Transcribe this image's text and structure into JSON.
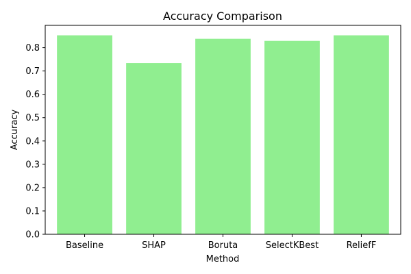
{
  "chart_data": {
    "type": "bar",
    "title": "Accuracy Comparison",
    "xlabel": "Method",
    "ylabel": "Accuracy",
    "categories": [
      "Baseline",
      "SHAP",
      "Boruta",
      "SelectKBest",
      "ReliefF"
    ],
    "values": [
      0.853,
      0.734,
      0.838,
      0.829,
      0.853
    ],
    "ylim": [
      0,
      0.8957
    ],
    "yticks": [
      "0.0",
      "0.1",
      "0.2",
      "0.3",
      "0.4",
      "0.5",
      "0.6",
      "0.7",
      "0.8"
    ],
    "bar_color": "#90ee90",
    "grid": false,
    "legend": false
  }
}
